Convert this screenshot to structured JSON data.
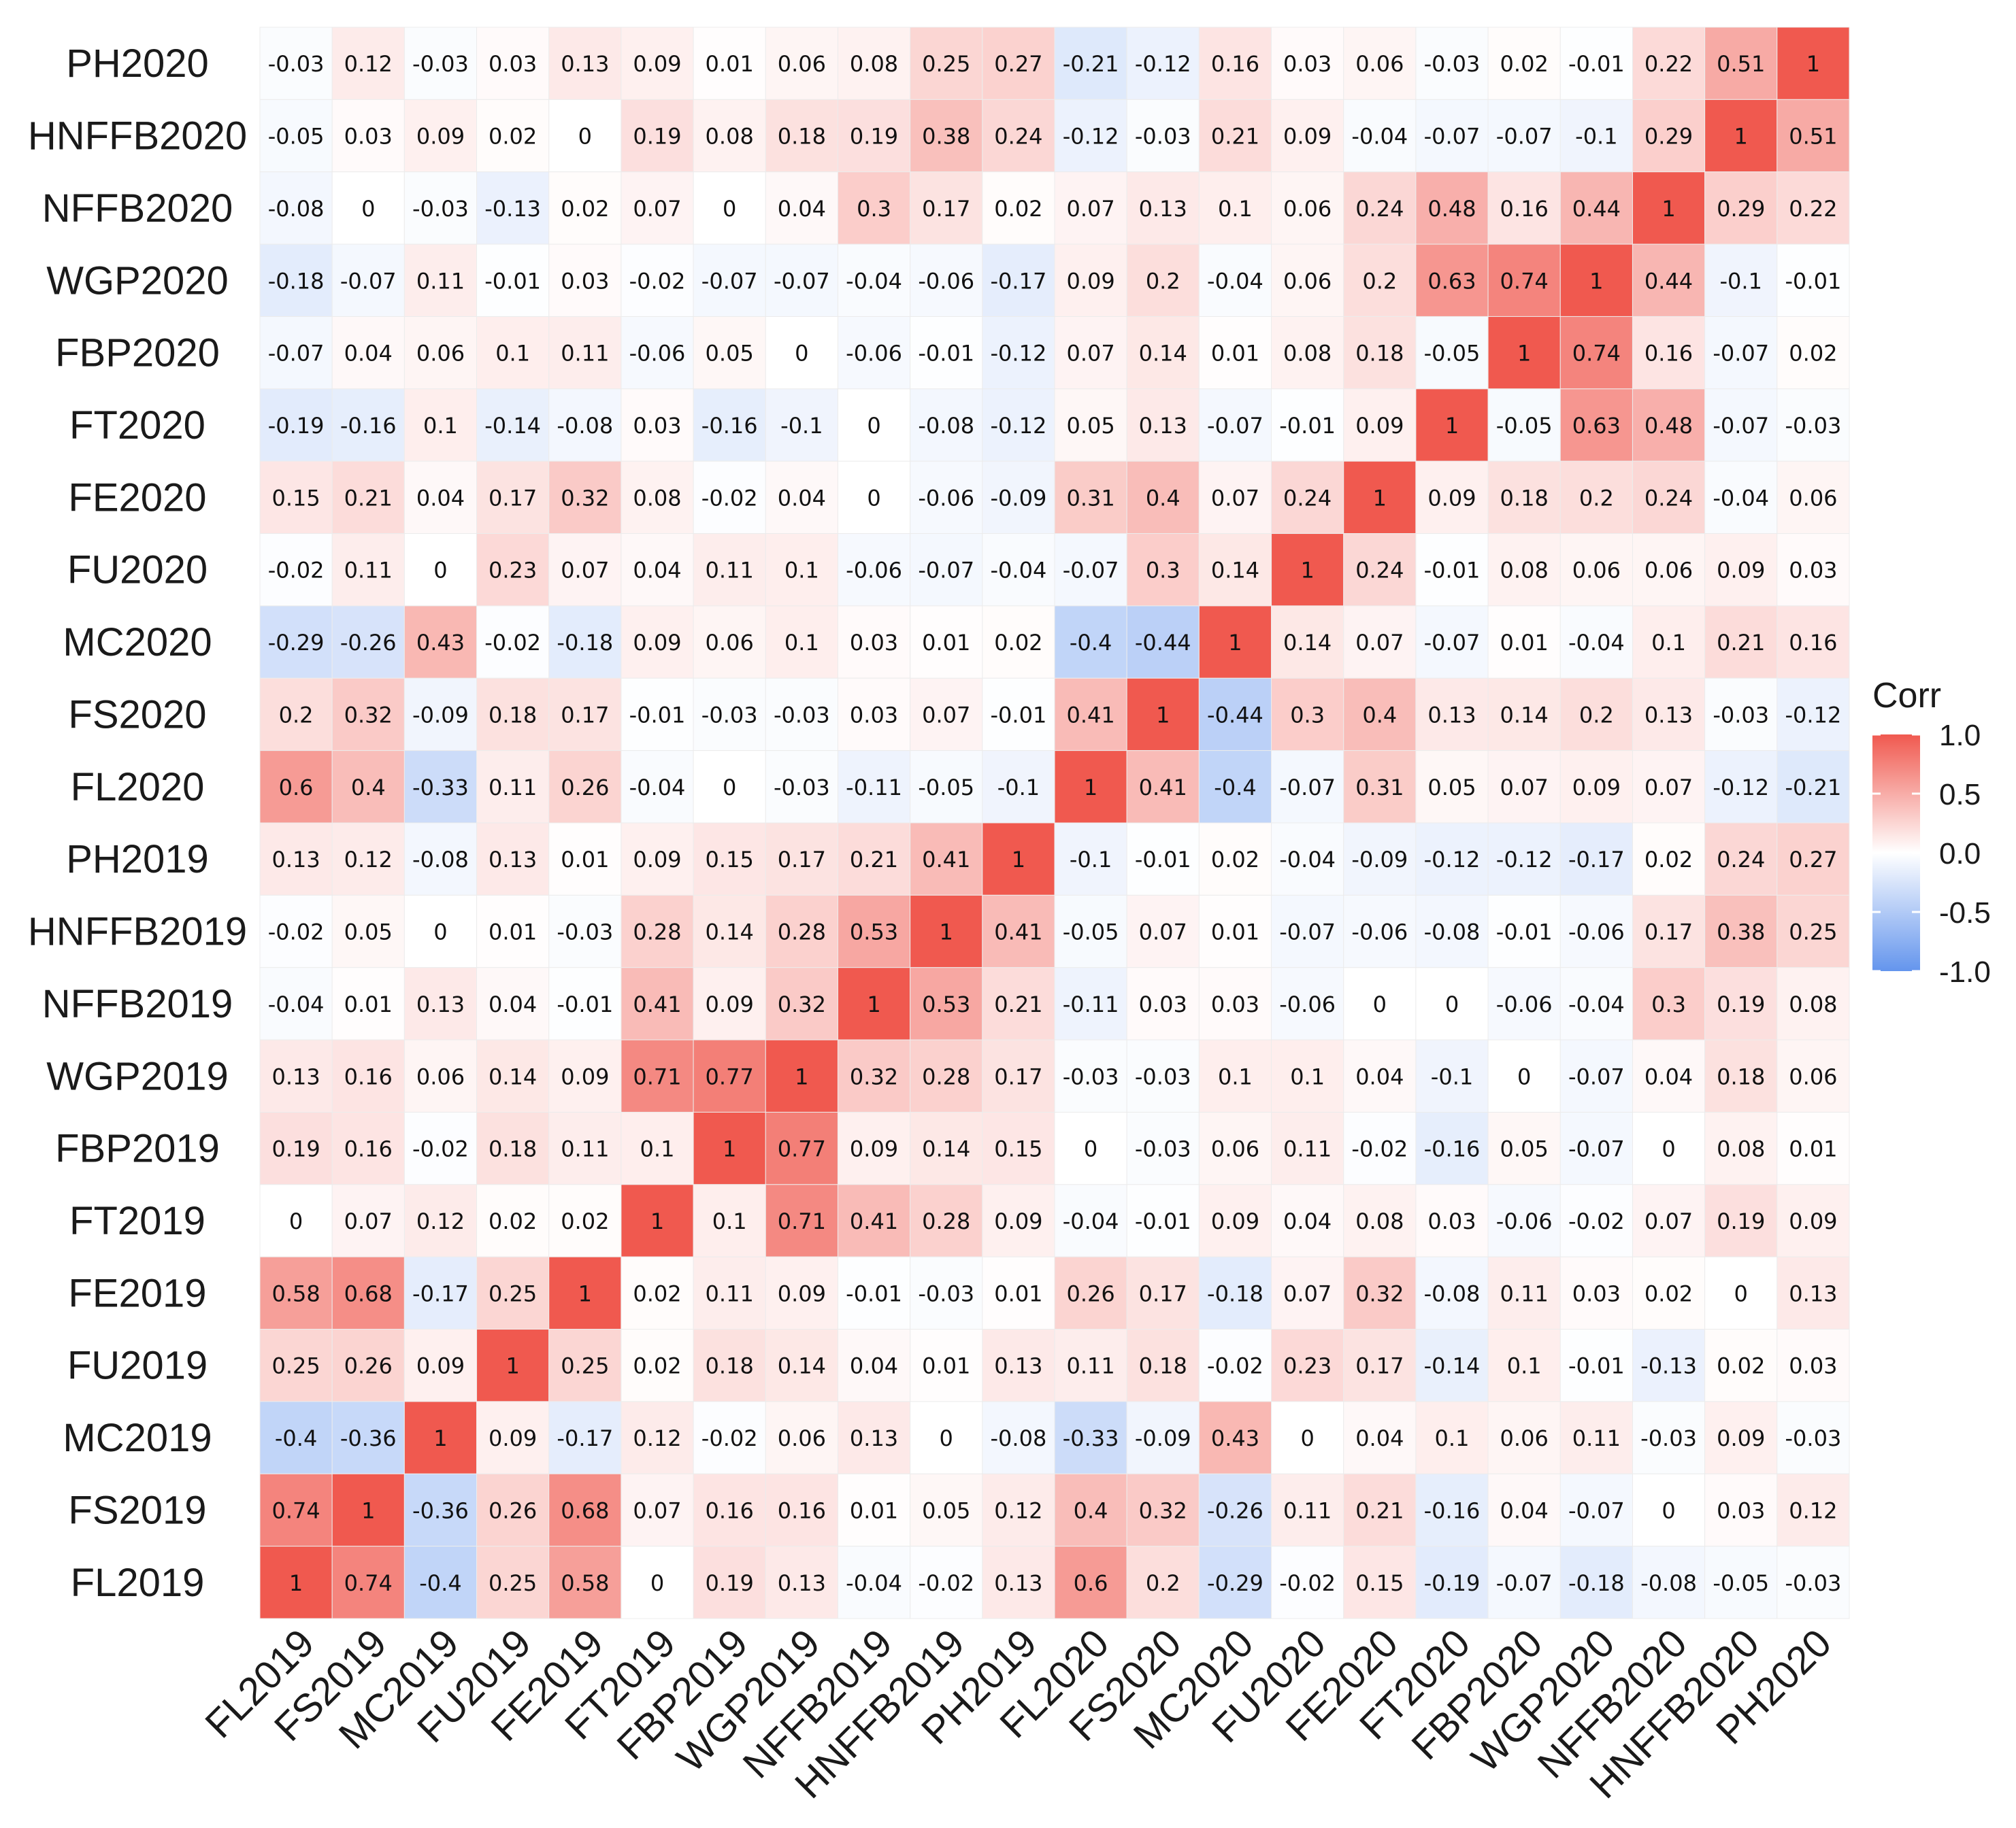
{
  "chart_data": {
    "type": "heatmap",
    "title": "",
    "xlabel": "",
    "ylabel": "",
    "x_categories": [
      "FL2019",
      "FS2019",
      "MC2019",
      "FU2019",
      "FE2019",
      "FT2019",
      "FBP2019",
      "WGP2019",
      "NFFB2019",
      "HNFFB2019",
      "PH2019",
      "FL2020",
      "FS2020",
      "MC2020",
      "FU2020",
      "FE2020",
      "FT2020",
      "FBP2020",
      "WGP2020",
      "NFFB2020",
      "HNFFB2020",
      "PH2020"
    ],
    "y_categories_top_to_bottom": [
      "PH2020",
      "HNFFB2020",
      "NFFB2020",
      "WGP2020",
      "FBP2020",
      "FT2020",
      "FE2020",
      "FU2020",
      "MC2020",
      "FS2020",
      "FL2020",
      "PH2019",
      "HNFFB2019",
      "NFFB2019",
      "WGP2019",
      "FBP2019",
      "FT2019",
      "FE2019",
      "FU2019",
      "MC2019",
      "FS2019",
      "FL2019"
    ],
    "values": [
      [
        -0.03,
        0.12,
        -0.03,
        0.03,
        0.13,
        0.09,
        0.01,
        0.06,
        0.08,
        0.25,
        0.27,
        -0.21,
        -0.12,
        0.16,
        0.03,
        0.06,
        -0.03,
        0.02,
        -0.01,
        0.22,
        0.51,
        1
      ],
      [
        -0.05,
        0.03,
        0.09,
        0.02,
        0,
        0.19,
        0.08,
        0.18,
        0.19,
        0.38,
        0.24,
        -0.12,
        -0.03,
        0.21,
        0.09,
        -0.04,
        -0.07,
        -0.07,
        -0.1,
        0.29,
        1,
        0.51
      ],
      [
        -0.08,
        0,
        -0.03,
        -0.13,
        0.02,
        0.07,
        0,
        0.04,
        0.3,
        0.17,
        0.02,
        0.07,
        0.13,
        0.1,
        0.06,
        0.24,
        0.48,
        0.16,
        0.44,
        1,
        0.29,
        0.22
      ],
      [
        -0.18,
        -0.07,
        0.11,
        -0.01,
        0.03,
        -0.02,
        -0.07,
        -0.07,
        -0.04,
        -0.06,
        -0.17,
        0.09,
        0.2,
        -0.04,
        0.06,
        0.2,
        0.63,
        0.74,
        1,
        0.44,
        -0.1,
        -0.01
      ],
      [
        -0.07,
        0.04,
        0.06,
        0.1,
        0.11,
        -0.06,
        0.05,
        0,
        -0.06,
        -0.01,
        -0.12,
        0.07,
        0.14,
        0.01,
        0.08,
        0.18,
        -0.05,
        1,
        0.74,
        0.16,
        -0.07,
        0.02
      ],
      [
        -0.19,
        -0.16,
        0.1,
        -0.14,
        -0.08,
        0.03,
        -0.16,
        -0.1,
        0,
        -0.08,
        -0.12,
        0.05,
        0.13,
        -0.07,
        -0.01,
        0.09,
        1,
        -0.05,
        0.63,
        0.48,
        -0.07,
        -0.03
      ],
      [
        0.15,
        0.21,
        0.04,
        0.17,
        0.32,
        0.08,
        -0.02,
        0.04,
        0,
        -0.06,
        -0.09,
        0.31,
        0.4,
        0.07,
        0.24,
        1,
        0.09,
        0.18,
        0.2,
        0.24,
        -0.04,
        0.06
      ],
      [
        -0.02,
        0.11,
        0,
        0.23,
        0.07,
        0.04,
        0.11,
        0.1,
        -0.06,
        -0.07,
        -0.04,
        -0.07,
        0.3,
        0.14,
        1,
        0.24,
        -0.01,
        0.08,
        0.06,
        0.06,
        0.09,
        0.03
      ],
      [
        -0.29,
        -0.26,
        0.43,
        -0.02,
        -0.18,
        0.09,
        0.06,
        0.1,
        0.03,
        0.01,
        0.02,
        -0.4,
        -0.44,
        1,
        0.14,
        0.07,
        -0.07,
        0.01,
        -0.04,
        0.1,
        0.21,
        0.16
      ],
      [
        0.2,
        0.32,
        -0.09,
        0.18,
        0.17,
        -0.01,
        -0.03,
        -0.03,
        0.03,
        0.07,
        -0.01,
        0.41,
        1,
        -0.44,
        0.3,
        0.4,
        0.13,
        0.14,
        0.2,
        0.13,
        -0.03,
        -0.12
      ],
      [
        0.6,
        0.4,
        -0.33,
        0.11,
        0.26,
        -0.04,
        0,
        -0.03,
        -0.11,
        -0.05,
        -0.1,
        1,
        0.41,
        -0.4,
        -0.07,
        0.31,
        0.05,
        0.07,
        0.09,
        0.07,
        -0.12,
        -0.21
      ],
      [
        0.13,
        0.12,
        -0.08,
        0.13,
        0.01,
        0.09,
        0.15,
        0.17,
        0.21,
        0.41,
        1,
        -0.1,
        -0.01,
        0.02,
        -0.04,
        -0.09,
        -0.12,
        -0.12,
        -0.17,
        0.02,
        0.24,
        0.27
      ],
      [
        -0.02,
        0.05,
        0,
        0.01,
        -0.03,
        0.28,
        0.14,
        0.28,
        0.53,
        1,
        0.41,
        -0.05,
        0.07,
        0.01,
        -0.07,
        -0.06,
        -0.08,
        -0.01,
        -0.06,
        0.17,
        0.38,
        0.25
      ],
      [
        -0.04,
        0.01,
        0.13,
        0.04,
        -0.01,
        0.41,
        0.09,
        0.32,
        1,
        0.53,
        0.21,
        -0.11,
        0.03,
        0.03,
        -0.06,
        0,
        0,
        -0.06,
        -0.04,
        0.3,
        0.19,
        0.08
      ],
      [
        0.13,
        0.16,
        0.06,
        0.14,
        0.09,
        0.71,
        0.77,
        1,
        0.32,
        0.28,
        0.17,
        -0.03,
        -0.03,
        0.1,
        0.1,
        0.04,
        -0.1,
        0,
        -0.07,
        0.04,
        0.18,
        0.06
      ],
      [
        0.19,
        0.16,
        -0.02,
        0.18,
        0.11,
        0.1,
        1,
        0.77,
        0.09,
        0.14,
        0.15,
        0,
        -0.03,
        0.06,
        0.11,
        -0.02,
        -0.16,
        0.05,
        -0.07,
        0,
        0.08,
        0.01
      ],
      [
        0,
        0.07,
        0.12,
        0.02,
        0.02,
        1,
        0.1,
        0.71,
        0.41,
        0.28,
        0.09,
        -0.04,
        -0.01,
        0.09,
        0.04,
        0.08,
        0.03,
        -0.06,
        -0.02,
        0.07,
        0.19,
        0.09
      ],
      [
        0.58,
        0.68,
        -0.17,
        0.25,
        1,
        0.02,
        0.11,
        0.09,
        -0.01,
        -0.03,
        0.01,
        0.26,
        0.17,
        -0.18,
        0.07,
        0.32,
        -0.08,
        0.11,
        0.03,
        0.02,
        0,
        0.13
      ],
      [
        0.25,
        0.26,
        0.09,
        1,
        0.25,
        0.02,
        0.18,
        0.14,
        0.04,
        0.01,
        0.13,
        0.11,
        0.18,
        -0.02,
        0.23,
        0.17,
        -0.14,
        0.1,
        -0.01,
        -0.13,
        0.02,
        0.03
      ],
      [
        -0.4,
        -0.36,
        1,
        0.09,
        -0.17,
        0.12,
        -0.02,
        0.06,
        0.13,
        0,
        -0.08,
        -0.33,
        -0.09,
        0.43,
        0,
        0.04,
        0.1,
        0.06,
        0.11,
        -0.03,
        0.09,
        -0.03
      ],
      [
        0.74,
        1,
        -0.36,
        0.26,
        0.68,
        0.07,
        0.16,
        0.16,
        0.01,
        0.05,
        0.12,
        0.4,
        0.32,
        -0.26,
        0.11,
        0.21,
        -0.16,
        0.04,
        -0.07,
        0,
        0.03,
        0.12
      ],
      [
        1,
        0.74,
        -0.4,
        0.25,
        0.58,
        0,
        0.19,
        0.13,
        -0.04,
        -0.02,
        0.13,
        0.6,
        0.2,
        -0.29,
        -0.02,
        0.15,
        -0.19,
        -0.07,
        -0.18,
        -0.08,
        -0.05,
        -0.03
      ]
    ],
    "color_scale": {
      "low": "#6495ED",
      "mid": "#FFFFFF",
      "high": "#F0594F",
      "domain": [
        -1,
        1
      ]
    },
    "legend": {
      "title": "Corr",
      "ticks": [
        "1.0",
        "0.5",
        "0.0",
        "-0.5",
        "-1.0"
      ],
      "tick_values": [
        1,
        0.5,
        0,
        -0.5,
        -1
      ],
      "placement": "right"
    }
  }
}
